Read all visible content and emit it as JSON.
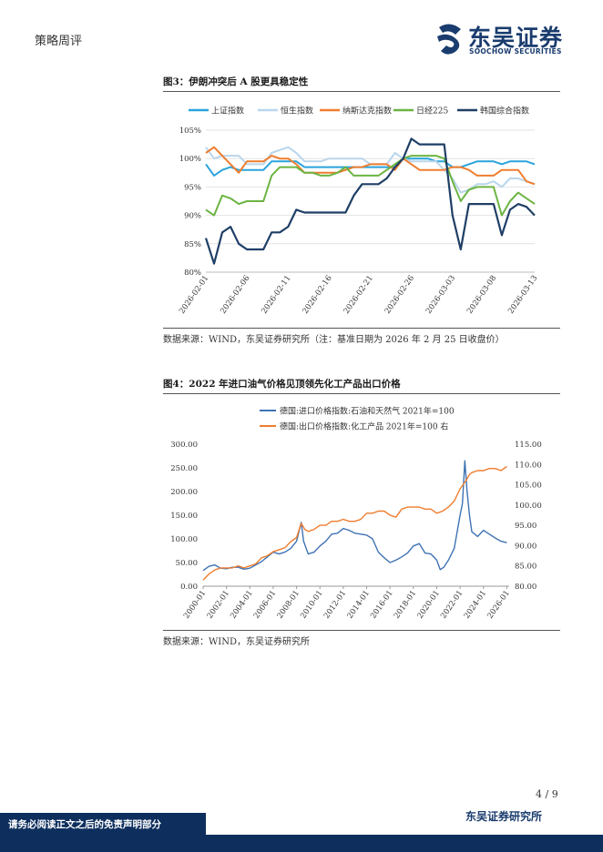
{
  "header": {
    "section": "策略周评",
    "logo_cn": "东吴证券",
    "logo_en": "SOOCHOW SECURITIES"
  },
  "figures": [
    {
      "title": "图3：伊朗冲突后 A 股更具稳定性",
      "source": "数据来源：WIND，东吴证券研究所（注：基准日期为 2026 年 2 月 25 日收盘价）"
    },
    {
      "title": "图4：2022 年进口油气价格见顶领先化工产品出口价格",
      "source": "数据来源：WIND，东吴证券研究所"
    }
  ],
  "chart_data": [
    {
      "type": "line",
      "x": [
        "2026-02-01",
        "2026-02-02",
        "2026-02-03",
        "2026-02-04",
        "2026-02-05",
        "2026-02-06",
        "2026-02-07",
        "2026-02-08",
        "2026-02-09",
        "2026-02-10",
        "2026-02-11",
        "2026-02-12",
        "2026-02-13",
        "2026-02-14",
        "2026-02-15",
        "2026-02-16",
        "2026-02-17",
        "2026-02-18",
        "2026-02-19",
        "2026-02-20",
        "2026-02-21",
        "2026-02-22",
        "2026-02-23",
        "2026-02-24",
        "2026-02-25",
        "2026-02-26",
        "2026-02-27",
        "2026-02-28",
        "2026-03-01",
        "2026-03-02",
        "2026-03-03",
        "2026-03-04",
        "2026-03-05",
        "2026-03-06",
        "2026-03-07",
        "2026-03-08",
        "2026-03-09",
        "2026-03-10",
        "2026-03-11",
        "2026-03-12",
        "2026-03-13"
      ],
      "x_tick_labels": [
        "2026-02-01",
        "2026-02-06",
        "2026-02-11",
        "2026-02-16",
        "2026-02-21",
        "2026-02-26",
        "2026-03-03",
        "2026-03-08",
        "2026-03-13"
      ],
      "ylim": [
        80,
        105
      ],
      "y_ticks": [
        "80%",
        "85%",
        "90%",
        "95%",
        "100%",
        "105%"
      ],
      "legend_position": "top",
      "series": [
        {
          "name": "上证指数",
          "color": "#2aa3dc",
          "values": [
            99.0,
            97.0,
            98.0,
            98.5,
            98.0,
            98.0,
            98.0,
            98.0,
            99.5,
            99.5,
            99.5,
            99.5,
            98.5,
            98.5,
            98.5,
            98.5,
            98.5,
            98.5,
            98.5,
            98.5,
            98.5,
            98.5,
            98.5,
            98.5,
            100.0,
            100.0,
            100.0,
            100.0,
            99.5,
            99.5,
            98.5,
            98.5,
            99.0,
            99.5,
            99.5,
            99.5,
            99.0,
            99.5,
            99.5,
            99.5,
            99.0
          ]
        },
        {
          "name": "恒生指数",
          "color": "#b9d6ec",
          "values": [
            102.0,
            100.0,
            100.5,
            100.5,
            100.5,
            99.0,
            99.0,
            99.0,
            101.0,
            101.5,
            102.0,
            101.0,
            99.5,
            99.5,
            99.5,
            100.0,
            100.0,
            100.0,
            100.0,
            100.0,
            99.0,
            99.0,
            99.0,
            101.0,
            100.0,
            99.5,
            99.5,
            99.5,
            99.5,
            98.0,
            96.5,
            94.0,
            94.5,
            95.5,
            95.5,
            96.0,
            95.0,
            96.5,
            96.5,
            96.0,
            95.5
          ]
        },
        {
          "name": "纳斯达克指数",
          "color": "#ef7d2f",
          "values": [
            101.0,
            102.0,
            100.5,
            99.0,
            97.5,
            99.5,
            99.5,
            99.5,
            100.5,
            100.0,
            100.0,
            99.0,
            97.5,
            97.5,
            97.5,
            97.5,
            97.5,
            98.0,
            98.5,
            98.5,
            99.0,
            99.0,
            99.0,
            98.0,
            100.0,
            99.0,
            98.0,
            98.0,
            98.0,
            98.0,
            98.5,
            98.5,
            98.0,
            97.0,
            97.0,
            97.0,
            98.0,
            98.0,
            98.0,
            96.0,
            95.5
          ]
        },
        {
          "name": "日经225",
          "color": "#6cb443",
          "values": [
            91.0,
            90.0,
            93.5,
            93.0,
            92.0,
            92.5,
            92.5,
            92.5,
            97.0,
            98.5,
            98.5,
            98.5,
            97.5,
            97.5,
            97.0,
            97.0,
            97.5,
            98.5,
            97.0,
            97.0,
            97.0,
            97.0,
            98.0,
            99.0,
            100.0,
            100.5,
            100.5,
            100.5,
            100.5,
            100.0,
            96.0,
            92.5,
            94.5,
            95.0,
            95.0,
            95.0,
            90.0,
            92.5,
            94.0,
            93.0,
            92.0
          ]
        },
        {
          "name": "韩国综合指数",
          "color": "#1f3f66",
          "values": [
            86.0,
            81.5,
            87.0,
            88.0,
            85.0,
            84.0,
            84.0,
            84.0,
            87.0,
            87.0,
            88.0,
            91.0,
            90.5,
            90.5,
            90.5,
            90.5,
            90.5,
            90.5,
            93.5,
            95.5,
            95.5,
            95.5,
            96.5,
            98.5,
            100.0,
            103.5,
            102.5,
            102.5,
            102.5,
            102.5,
            90.0,
            84.0,
            92.0,
            92.0,
            92.0,
            92.0,
            86.5,
            91.0,
            92.0,
            91.5,
            90.0
          ]
        }
      ]
    },
    {
      "type": "line",
      "x_tick_labels": [
        "2000-01",
        "2002-01",
        "2004-01",
        "2006-01",
        "2008-01",
        "2010-01",
        "2012-01",
        "2014-01",
        "2016-01",
        "2018-01",
        "2020-01",
        "2022-01",
        "2024-01",
        "2026-01"
      ],
      "xlim": [
        2000.0,
        2026.2
      ],
      "y_left_ticks": [
        "0.00",
        "50.00",
        "100.00",
        "150.00",
        "200.00",
        "250.00",
        "300.00"
      ],
      "y_left_lim": [
        0,
        300
      ],
      "y_right_ticks": [
        "80.00",
        "85.00",
        "90.00",
        "95.00",
        "100.00",
        "105.00",
        "110.00",
        "115.00"
      ],
      "y_right_lim": [
        80,
        115
      ],
      "legend_position": "top",
      "series": [
        {
          "name": "德国:进口价格指数:石油和天然气 2021年=100",
          "axis": "left",
          "color": "#3f73b4",
          "x": [
            2000,
            2000.5,
            2001,
            2001.5,
            2002,
            2002.5,
            2003,
            2003.5,
            2004,
            2004.5,
            2005,
            2005.5,
            2006,
            2006.5,
            2007,
            2007.5,
            2008,
            2008.4,
            2008.6,
            2009,
            2009.5,
            2010,
            2010.5,
            2011,
            2011.5,
            2012,
            2012.5,
            2013,
            2013.5,
            2014,
            2014.5,
            2015,
            2015.5,
            2016,
            2016.5,
            2017,
            2017.5,
            2018,
            2018.5,
            2019,
            2019.5,
            2020,
            2020.3,
            2020.6,
            2021,
            2021.5,
            2022,
            2022.2,
            2022.4,
            2022.6,
            2022.8,
            2023,
            2023.5,
            2024,
            2024.5,
            2025,
            2025.5,
            2026
          ],
          "values": [
            33,
            42,
            45,
            38,
            37,
            40,
            40,
            36,
            38,
            45,
            52,
            62,
            72,
            68,
            72,
            80,
            95,
            135,
            95,
            68,
            72,
            85,
            95,
            110,
            112,
            122,
            118,
            112,
            110,
            108,
            100,
            72,
            60,
            50,
            55,
            62,
            70,
            85,
            90,
            70,
            68,
            55,
            35,
            40,
            55,
            80,
            150,
            175,
            265,
            200,
            150,
            115,
            105,
            118,
            110,
            102,
            95,
            92
          ]
        },
        {
          "name": "德国:出口价格指数:化工产品 2021年=100 右",
          "axis": "right",
          "color": "#ef7d2f",
          "x": [
            2000,
            2000.5,
            2001,
            2001.5,
            2002,
            2002.5,
            2003,
            2003.5,
            2004,
            2004.5,
            2005,
            2005.5,
            2006,
            2006.5,
            2007,
            2007.5,
            2008,
            2008.4,
            2008.7,
            2009,
            2009.5,
            2010,
            2010.5,
            2011,
            2011.5,
            2012,
            2012.5,
            2013,
            2013.5,
            2014,
            2014.5,
            2015,
            2015.5,
            2016,
            2016.5,
            2017,
            2017.5,
            2018,
            2018.5,
            2019,
            2019.5,
            2020,
            2020.5,
            2021,
            2021.5,
            2022,
            2022.5,
            2022.8,
            2023,
            2023.5,
            2024,
            2024.5,
            2025,
            2025.5,
            2026
          ],
          "values": [
            81.5,
            83.0,
            84.0,
            84.5,
            84.5,
            84.5,
            85.0,
            84.5,
            85.0,
            85.5,
            87.0,
            87.5,
            88.5,
            89.0,
            89.5,
            91.0,
            92.0,
            95.5,
            94.0,
            93.5,
            94.0,
            95.0,
            95.0,
            96.0,
            96.0,
            96.5,
            96.0,
            96.0,
            96.5,
            98.0,
            98.0,
            98.5,
            98.5,
            97.5,
            97.0,
            99.0,
            99.5,
            99.5,
            99.5,
            99.0,
            99.0,
            98.0,
            98.5,
            99.5,
            101.0,
            104.0,
            106.0,
            107.5,
            108.0,
            108.5,
            108.5,
            109.0,
            109.0,
            108.5,
            109.5
          ]
        }
      ]
    }
  ],
  "footer": {
    "page": "4 / 9",
    "org": "东吴证券研究所",
    "disclaimer": "请务必阅读正文之后的免责声明部分"
  }
}
